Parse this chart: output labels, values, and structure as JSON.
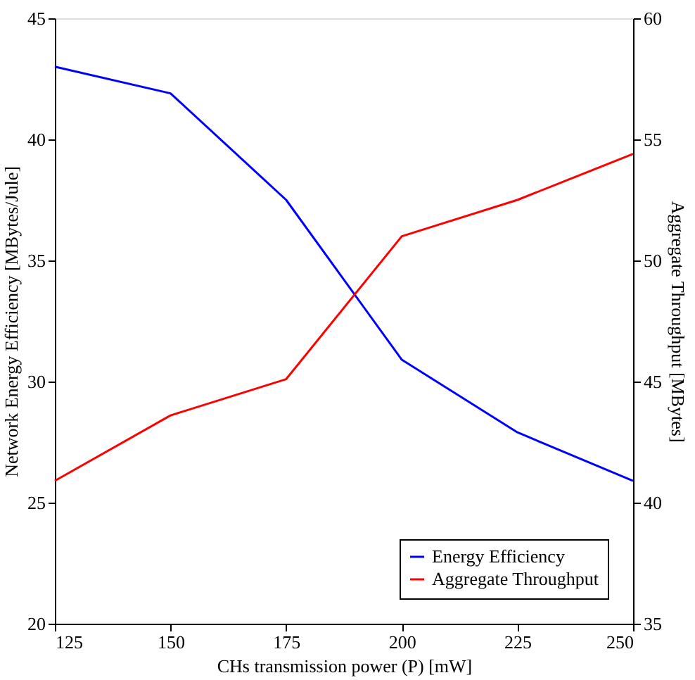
{
  "chart_data": {
    "type": "line",
    "xlabel": "CHs transmission power (P) [mW]",
    "ylabel": "Network Energy Efficiency [MBytes/Jule]",
    "y2label": "Aggregate Throughput [MBytes]",
    "x": [
      125,
      150,
      175,
      200,
      225,
      250
    ],
    "xlim": [
      125,
      250
    ],
    "xticks": [
      125,
      150,
      175,
      200,
      225,
      250
    ],
    "ylim": [
      20,
      45
    ],
    "yticks": [
      20,
      25,
      30,
      35,
      40,
      45
    ],
    "y2lim": [
      35,
      60
    ],
    "y2ticks": [
      35,
      40,
      45,
      50,
      55,
      60
    ],
    "series": [
      {
        "name": "Energy Efficiency",
        "color": "#0000ff",
        "values": [
          43.0,
          41.9,
          37.5,
          30.9,
          27.9,
          25.9
        ]
      },
      {
        "name": "Aggregate Throughput",
        "color": "#ff0000",
        "axis": "y2",
        "values": [
          40.9,
          43.6,
          45.1,
          51.0,
          52.5,
          54.4
        ]
      }
    ],
    "legend": "bottom right",
    "grid": false,
    "marker": "none",
    "line_style": "solid"
  }
}
